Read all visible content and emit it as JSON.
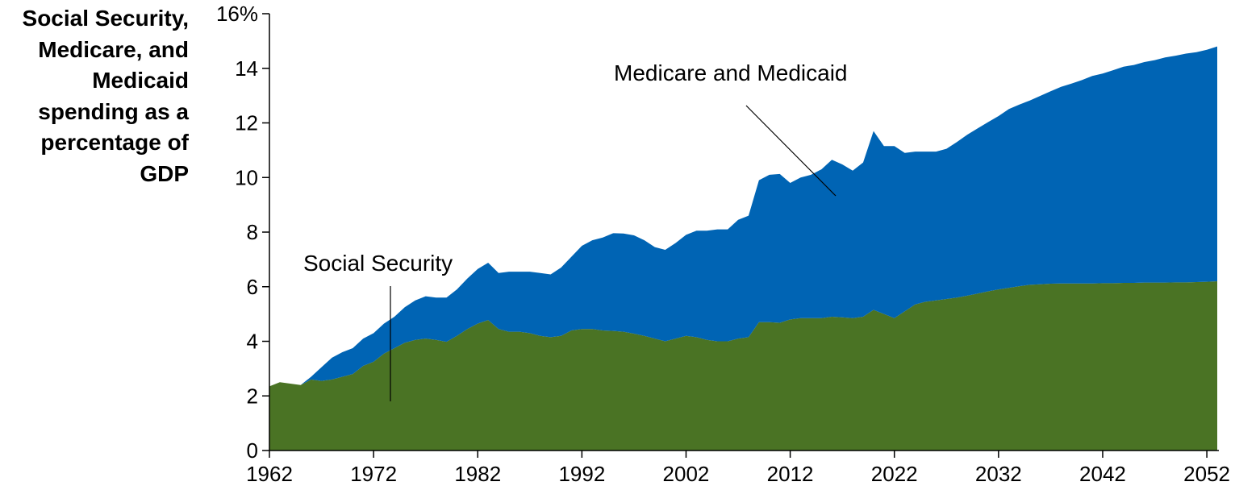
{
  "chart_data": {
    "type": "area",
    "stacked": true,
    "ylabel_lines": [
      "Social Security,",
      "Medicare, and",
      "Medicaid",
      "spending as a",
      "percentage of",
      "GDP"
    ],
    "ylim": [
      0,
      16
    ],
    "xlim": [
      1962,
      2053
    ],
    "yticks": [
      0,
      2,
      4,
      6,
      8,
      10,
      12,
      14,
      16
    ],
    "ytick_labels": [
      "0",
      "2",
      "4",
      "6",
      "8",
      "10",
      "12",
      "14",
      "16%"
    ],
    "xticks": [
      1962,
      1972,
      1982,
      1992,
      2002,
      2012,
      2022,
      2032,
      2042,
      2052
    ],
    "xtick_labels": [
      "1962",
      "1972",
      "1982",
      "1992",
      "2002",
      "2012",
      "2022",
      "2032",
      "2042",
      "2052"
    ],
    "grid": false,
    "legend": "none (direct annotations)",
    "annotations": [
      {
        "text": "Medicare and Medicaid",
        "series": "Medicare and Medicaid"
      },
      {
        "text": "Social Security",
        "series": "Social Security"
      }
    ],
    "x": [
      1962,
      1963,
      1964,
      1965,
      1966,
      1967,
      1968,
      1969,
      1970,
      1971,
      1972,
      1973,
      1974,
      1975,
      1976,
      1977,
      1978,
      1979,
      1980,
      1981,
      1982,
      1983,
      1984,
      1985,
      1986,
      1987,
      1988,
      1989,
      1990,
      1991,
      1992,
      1993,
      1994,
      1995,
      1996,
      1997,
      1998,
      1999,
      2000,
      2001,
      2002,
      2003,
      2004,
      2005,
      2006,
      2007,
      2008,
      2009,
      2010,
      2011,
      2012,
      2013,
      2014,
      2015,
      2016,
      2017,
      2018,
      2019,
      2020,
      2021,
      2022,
      2023,
      2024,
      2025,
      2026,
      2027,
      2028,
      2029,
      2030,
      2031,
      2032,
      2033,
      2034,
      2035,
      2036,
      2037,
      2038,
      2039,
      2040,
      2041,
      2042,
      2043,
      2044,
      2045,
      2046,
      2047,
      2048,
      2049,
      2050,
      2051,
      2052,
      2053
    ],
    "series": [
      {
        "name": "Social Security",
        "color": "#4a7324",
        "values": [
          2.35,
          2.5,
          2.45,
          2.4,
          2.6,
          2.55,
          2.6,
          2.7,
          2.8,
          3.1,
          3.25,
          3.55,
          3.75,
          3.95,
          4.05,
          4.1,
          4.05,
          3.98,
          4.2,
          4.45,
          4.65,
          4.78,
          4.45,
          4.35,
          4.35,
          4.3,
          4.2,
          4.15,
          4.2,
          4.4,
          4.45,
          4.45,
          4.4,
          4.38,
          4.35,
          4.28,
          4.2,
          4.1,
          4.0,
          4.1,
          4.2,
          4.15,
          4.05,
          4.0,
          4.0,
          4.1,
          4.15,
          4.7,
          4.7,
          4.68,
          4.8,
          4.85,
          4.85,
          4.85,
          4.9,
          4.88,
          4.85,
          4.9,
          5.15,
          5.0,
          4.85,
          5.1,
          5.35,
          5.45,
          5.5,
          5.55,
          5.6,
          5.67,
          5.75,
          5.83,
          5.9,
          5.96,
          6.02,
          6.07,
          6.09,
          6.11,
          6.12,
          6.12,
          6.12,
          6.12,
          6.13,
          6.13,
          6.14,
          6.14,
          6.15,
          6.15,
          6.15,
          6.16,
          6.16,
          6.17,
          6.18,
          6.2
        ]
      },
      {
        "name": "Medicare and Medicaid",
        "color": "#0064b4",
        "values": [
          0,
          0,
          0,
          0,
          0.1,
          0.5,
          0.8,
          0.9,
          0.95,
          1.0,
          1.05,
          1.1,
          1.15,
          1.3,
          1.45,
          1.55,
          1.55,
          1.62,
          1.7,
          1.85,
          2.0,
          2.1,
          2.05,
          2.2,
          2.2,
          2.25,
          2.3,
          2.3,
          2.5,
          2.7,
          3.05,
          3.25,
          3.4,
          3.58,
          3.6,
          3.6,
          3.5,
          3.35,
          3.35,
          3.5,
          3.7,
          3.9,
          4.0,
          4.1,
          4.1,
          4.35,
          4.45,
          5.2,
          5.4,
          5.45,
          5.0,
          5.15,
          5.25,
          5.45,
          5.75,
          5.6,
          5.4,
          5.65,
          6.55,
          6.15,
          6.3,
          5.8,
          5.6,
          5.5,
          5.45,
          5.5,
          5.7,
          5.9,
          6.05,
          6.2,
          6.35,
          6.55,
          6.65,
          6.75,
          6.9,
          7.05,
          7.2,
          7.32,
          7.45,
          7.6,
          7.68,
          7.8,
          7.92,
          7.98,
          8.08,
          8.15,
          8.25,
          8.3,
          8.38,
          8.42,
          8.5,
          8.6
        ]
      }
    ]
  }
}
